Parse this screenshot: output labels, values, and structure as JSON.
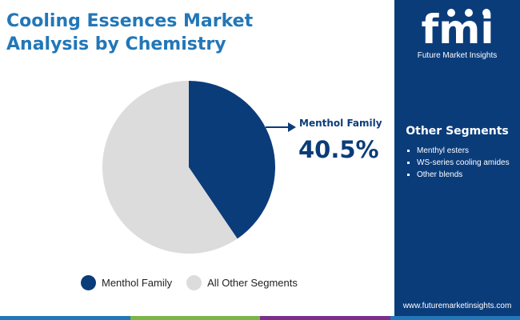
{
  "title_lines": [
    "Cooling Essences Market",
    "Analysis by Chemistry"
  ],
  "chart_data": {
    "type": "pie",
    "slices": [
      {
        "label": "Menthol Family",
        "value": 40.5,
        "color": "#0b3c7a"
      },
      {
        "label": "All Other Segments",
        "value": 59.5,
        "color": "#dcdcdc"
      }
    ],
    "start_angle_deg": 0,
    "direction": "clockwise",
    "callout": {
      "label": "Menthol Family",
      "value_text": "40.5%"
    },
    "legend": [
      {
        "label": "Menthol Family",
        "color": "#0b3c7a"
      },
      {
        "label": "All Other Segments",
        "color": "#dcdcdc"
      }
    ],
    "legend_position": "bottom"
  },
  "sidebar": {
    "logo_text": "fmi",
    "brand": "Future Market Insights",
    "segments_title": "Other Segments",
    "segments": [
      "Menthyl esters",
      "WS-series cooling amides",
      "Other blends"
    ],
    "website": "www.futuremarketinsights.com",
    "background": "#0b3c7a"
  },
  "bottom_bar_colors": [
    "#2277b8",
    "#7ab648",
    "#7b2f8c",
    "#2277b8"
  ]
}
